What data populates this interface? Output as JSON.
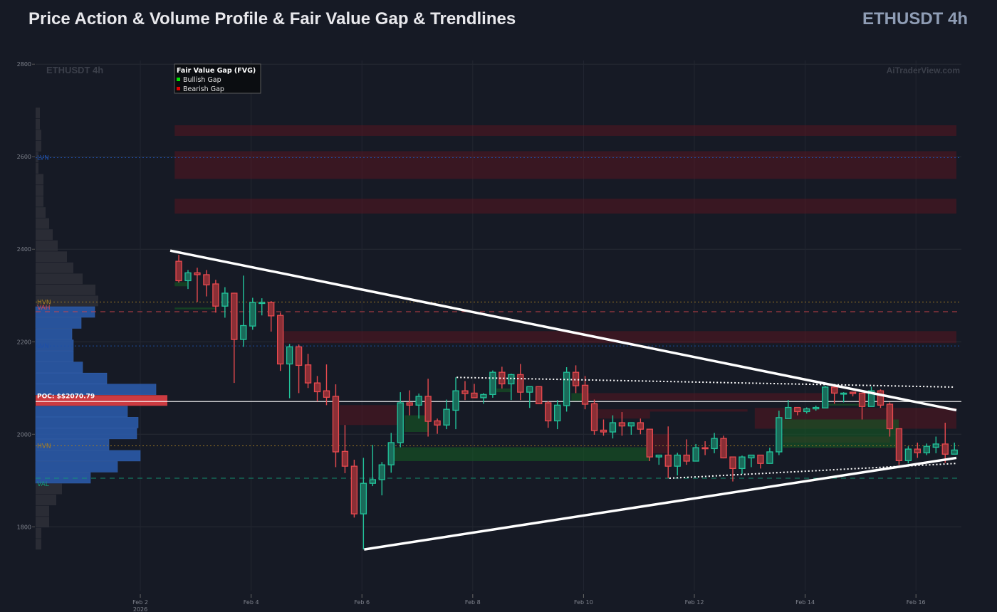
{
  "header": {
    "title": "Price Action & Volume Profile & Fair Value Gap & Trendlines",
    "symbol": "ETHUSDT 4h"
  },
  "watermark": {
    "left": "ETHUSDT 4h",
    "right": "AiTraderView.com"
  },
  "colors": {
    "background": "#161a25",
    "bull": "#22c39a",
    "bear": "#e84a4f",
    "profile": "#2b5aa8",
    "profile_outside": "#2c2f37",
    "poc": "#d63d42"
  },
  "chart_data": {
    "type": "candlestick",
    "title": "Price Action & Volume Profile & Fair Value Gap & Trendlines",
    "x_unit": "days since Feb 2 2026",
    "xlim": [
      -1.89,
      14.82
    ],
    "ylim": [
      1662,
      2808
    ],
    "grid": true,
    "y_ticks": [
      1800,
      2000,
      2200,
      2400,
      2600,
      2800
    ],
    "x_ticks": [
      {
        "day": 0,
        "label": "Feb 2",
        "sub": "2026"
      },
      {
        "day": 2,
        "label": "Feb 4"
      },
      {
        "day": 4,
        "label": "Feb 6"
      },
      {
        "day": 6,
        "label": "Feb 8"
      },
      {
        "day": 8,
        "label": "Feb 10"
      },
      {
        "day": 10,
        "label": "Feb 12"
      },
      {
        "day": 12,
        "label": "Feb 14"
      },
      {
        "day": 14,
        "label": "Feb 16"
      }
    ],
    "candles_start_day": 0.694,
    "candle_interval_days": 0.16667,
    "candles": [
      [
        2374,
        2388,
        2328,
        2332
      ],
      [
        2332,
        2355,
        2314,
        2349
      ],
      [
        2349,
        2360,
        2286,
        2345
      ],
      [
        2345,
        2355,
        2298,
        2323
      ],
      [
        2325,
        2334,
        2263,
        2277
      ],
      [
        2277,
        2318,
        2252,
        2305
      ],
      [
        2305,
        2306,
        2111,
        2205
      ],
      [
        2205,
        2343,
        2189,
        2235
      ],
      [
        2234,
        2295,
        2226,
        2285
      ],
      [
        2283,
        2294,
        2257,
        2285
      ],
      [
        2285,
        2288,
        2222,
        2256
      ],
      [
        2257,
        2263,
        2137,
        2152
      ],
      [
        2152,
        2195,
        2078,
        2189
      ],
      [
        2189,
        2194,
        2089,
        2149
      ],
      [
        2150,
        2174,
        2100,
        2111
      ],
      [
        2111,
        2126,
        2071,
        2092
      ],
      [
        2094,
        2151,
        2063,
        2080
      ],
      [
        2082,
        2108,
        1929,
        1962
      ],
      [
        1963,
        2020,
        1916,
        1931
      ],
      [
        1931,
        1945,
        1820,
        1828
      ],
      [
        1828,
        1949,
        1751,
        1894
      ],
      [
        1894,
        1977,
        1888,
        1902
      ],
      [
        1902,
        1940,
        1868,
        1934
      ],
      [
        1934,
        2003,
        1917,
        1982
      ],
      [
        1982,
        2091,
        1972,
        2068
      ],
      [
        2068,
        2095,
        2041,
        2063
      ],
      [
        2063,
        2088,
        2034,
        2082
      ],
      [
        2082,
        2120,
        1995,
        2028
      ],
      [
        2029,
        2034,
        2001,
        2020
      ],
      [
        2020,
        2075,
        2011,
        2054
      ],
      [
        2052,
        2123,
        2011,
        2094
      ],
      [
        2094,
        2115,
        2074,
        2088
      ],
      [
        2089,
        2109,
        2079,
        2079
      ],
      [
        2079,
        2089,
        2066,
        2086
      ],
      [
        2086,
        2138,
        2079,
        2134
      ],
      [
        2134,
        2146,
        2099,
        2109
      ],
      [
        2109,
        2131,
        2074,
        2129
      ],
      [
        2129,
        2152,
        2074,
        2091
      ],
      [
        2091,
        2103,
        2057,
        2103
      ],
      [
        2103,
        2103,
        2066,
        2066
      ],
      [
        2068,
        2072,
        2014,
        2029
      ],
      [
        2029,
        2074,
        2011,
        2063
      ],
      [
        2062,
        2145,
        2049,
        2134
      ],
      [
        2134,
        2149,
        2089,
        2105
      ],
      [
        2106,
        2126,
        2054,
        2065
      ],
      [
        2066,
        2075,
        1999,
        2008
      ],
      [
        2009,
        2032,
        1997,
        2005
      ],
      [
        2005,
        2041,
        1991,
        2025
      ],
      [
        2025,
        2048,
        1997,
        2018
      ],
      [
        2018,
        2025,
        1999,
        2025
      ],
      [
        2025,
        2034,
        2000,
        2011
      ],
      [
        2011,
        2012,
        1942,
        1951
      ],
      [
        1951,
        1955,
        1934,
        1955
      ],
      [
        1955,
        2017,
        1905,
        1931
      ],
      [
        1931,
        1960,
        1911,
        1955
      ],
      [
        1955,
        1989,
        1934,
        1942
      ],
      [
        1942,
        1979,
        1942,
        1971
      ],
      [
        1971,
        1985,
        1955,
        1969
      ],
      [
        1969,
        2003,
        1959,
        1991
      ],
      [
        1991,
        1997,
        1948,
        1949
      ],
      [
        1951,
        1951,
        1898,
        1926
      ],
      [
        1926,
        1954,
        1914,
        1951
      ],
      [
        1949,
        1955,
        1929,
        1955
      ],
      [
        1955,
        1955,
        1926,
        1937
      ],
      [
        1937,
        1971,
        1937,
        1962
      ],
      [
        1962,
        2051,
        1955,
        2036
      ],
      [
        2034,
        2074,
        2034,
        2058
      ],
      [
        2058,
        2058,
        2041,
        2049
      ],
      [
        2049,
        2058,
        2045,
        2055
      ],
      [
        2055,
        2062,
        2051,
        2058
      ],
      [
        2057,
        2105,
        2057,
        2102
      ],
      [
        2102,
        2105,
        2066,
        2089
      ],
      [
        2089,
        2091,
        2069,
        2089
      ],
      [
        2091,
        2091,
        2082,
        2088
      ],
      [
        2089,
        2089,
        2032,
        2060
      ],
      [
        2060,
        2103,
        2060,
        2094
      ],
      [
        2094,
        2097,
        2057,
        2063
      ],
      [
        2065,
        2069,
        1995,
        2012
      ],
      [
        2012,
        2012,
        1934,
        1943
      ],
      [
        1943,
        1974,
        1937,
        1968
      ],
      [
        1968,
        1982,
        1949,
        1960
      ],
      [
        1960,
        1980,
        1955,
        1974
      ],
      [
        1972,
        1995,
        1959,
        1979
      ],
      [
        1979,
        2025,
        1938,
        1957
      ],
      [
        1957,
        1982,
        1957,
        1966
      ]
    ],
    "fvg_legend": {
      "title": "Fair Value Gap (FVG)",
      "bullish": "Bullish Gap",
      "bearish": "Bearish Gap",
      "bullish_color": "#00e000",
      "bearish_color": "#e00000"
    },
    "fvg_zones": [
      {
        "type": "bearish",
        "from_day": 0.62,
        "to_day": 14.73,
        "top": 2668,
        "bottom": 2645
      },
      {
        "type": "bearish",
        "from_day": 0.62,
        "to_day": 14.73,
        "top": 2612,
        "bottom": 2552
      },
      {
        "type": "bearish",
        "from_day": 0.62,
        "to_day": 14.73,
        "top": 2509,
        "bottom": 2477
      },
      {
        "type": "bearish",
        "from_day": 2.58,
        "to_day": 14.73,
        "top": 2223,
        "bottom": 2197
      },
      {
        "type": "bearish",
        "from_day": 3.6,
        "to_day": 4.67,
        "top": 2063,
        "bottom": 2020
      },
      {
        "type": "bearish",
        "from_day": 8.0,
        "to_day": 12.4,
        "top": 2089,
        "bottom": 2074
      },
      {
        "type": "bearish",
        "from_day": 8.26,
        "to_day": 9.2,
        "top": 2054,
        "bottom": 2034
      },
      {
        "type": "bearish",
        "from_day": 9.2,
        "to_day": 10.96,
        "top": 2054,
        "bottom": 2049
      },
      {
        "type": "bearish",
        "from_day": 9.2,
        "to_day": 9.55,
        "top": 2000,
        "bottom": 1959
      },
      {
        "type": "bearish",
        "from_day": 11.09,
        "to_day": 14.73,
        "top": 2057,
        "bottom": 2012
      },
      {
        "type": "bearish",
        "from_day": 11.6,
        "to_day": 13.53,
        "top": 1995,
        "bottom": 1982
      },
      {
        "type": "bullish",
        "from_day": 0.62,
        "to_day": 0.85,
        "top": 2329,
        "bottom": 2320
      },
      {
        "type": "bullish",
        "from_day": 0.62,
        "to_day": 1.35,
        "top": 2274,
        "bottom": 2270
      },
      {
        "type": "bullish",
        "from_day": 4.77,
        "to_day": 5.21,
        "top": 2041,
        "bottom": 2005
      },
      {
        "type": "bullish",
        "from_day": 4.58,
        "to_day": 9.2,
        "top": 1972,
        "bottom": 1942
      },
      {
        "type": "bullish",
        "from_day": 6.43,
        "to_day": 6.68,
        "top": 2099,
        "bottom": 2091
      },
      {
        "type": "bullish",
        "from_day": 7.78,
        "to_day": 8.0,
        "top": 2089,
        "bottom": 2072
      },
      {
        "type": "bullish",
        "from_day": 11.6,
        "to_day": 13.69,
        "top": 2032,
        "bottom": 1971
      },
      {
        "type": "bullish",
        "from_day": 12.42,
        "to_day": 13.15,
        "top": 2066,
        "bottom": 2062
      }
    ],
    "volume_profile": {
      "top_price": 2706,
      "bin_size": 23.9,
      "value_area_bins": [
        18,
        33
      ],
      "poc_bin": 26,
      "volumes": [
        6,
        6,
        8,
        8,
        4,
        4,
        11,
        11,
        11,
        14,
        19,
        24,
        31,
        44,
        53,
        66,
        84,
        88,
        83,
        64,
        51,
        53,
        53,
        66,
        100,
        169,
        185,
        129,
        144,
        142,
        103,
        147,
        115,
        77,
        37,
        29,
        19,
        19,
        8,
        8
      ]
    },
    "levels": [
      {
        "name": "LVN",
        "price": 2598,
        "color": "#1f4fa8",
        "style": "dotted"
      },
      {
        "name": "HVN",
        "price": 2286,
        "color": "#a57d24",
        "style": "dotted"
      },
      {
        "name": "VAH",
        "price": 2265,
        "color": "#d6454a",
        "style": "dashed"
      },
      {
        "name": "LVN",
        "price": 2191,
        "color": "#1f4fa8",
        "style": "dotted"
      },
      {
        "name": "POC: $$2070.79",
        "price": 2070.79,
        "color": "#ffffff",
        "style": "solid"
      },
      {
        "name": "HVN",
        "price": 1975,
        "color": "#a57d24",
        "style": "dotted"
      },
      {
        "name": "VAL",
        "price": 1905,
        "color": "#149a77",
        "style": "dashed"
      }
    ],
    "trendlines": [
      {
        "name": "upper-trendline",
        "style": "solid",
        "from": [
          0.54,
          2397
        ],
        "to": [
          14.73,
          2052
        ]
      },
      {
        "name": "lower-trendline",
        "style": "solid",
        "from": [
          4.04,
          1751
        ],
        "to": [
          14.73,
          1949
        ]
      },
      {
        "name": "upper-channel",
        "style": "dotted",
        "from": [
          5.71,
          2123
        ],
        "to": [
          14.69,
          2102
        ]
      },
      {
        "name": "lower-channel",
        "style": "dotted",
        "from": [
          9.55,
          1905
        ],
        "to": [
          14.73,
          1937
        ]
      }
    ]
  }
}
